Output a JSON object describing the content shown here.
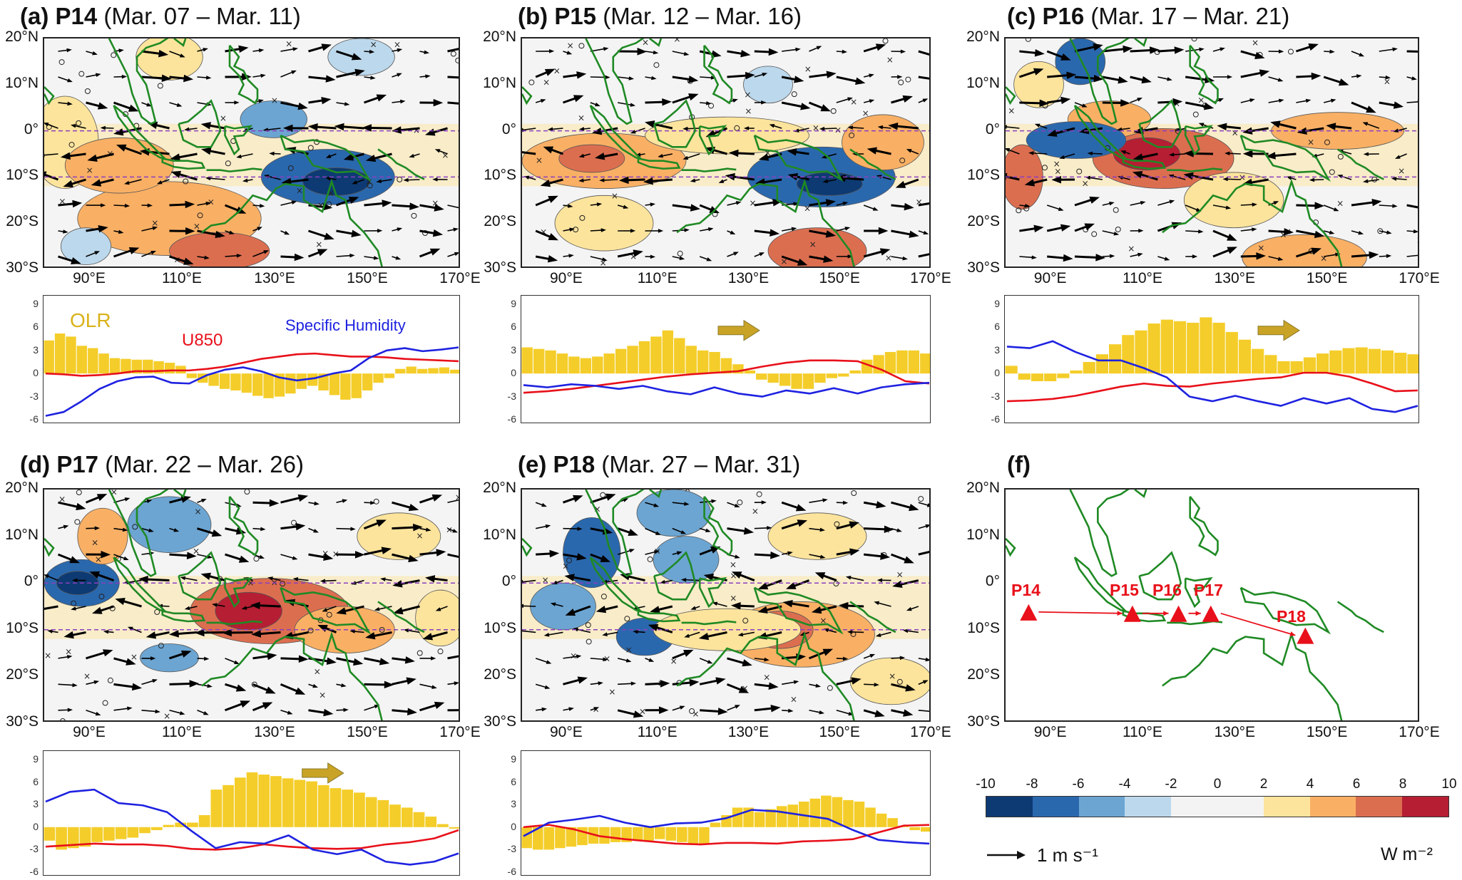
{
  "panels": [
    {
      "id": "a",
      "letter": "(a)",
      "name": "P14",
      "dates": "(Mar. 07 – Mar. 11)"
    },
    {
      "id": "b",
      "letter": "(b)",
      "name": "P15",
      "dates": "(Mar. 12 – Mar. 16)"
    },
    {
      "id": "c",
      "letter": "(c)",
      "name": "P16",
      "dates": "(Mar. 17 – Mar. 21)"
    },
    {
      "id": "d",
      "letter": "(d)",
      "name": "P17",
      "dates": "(Mar. 22 – Mar. 26)"
    },
    {
      "id": "e",
      "letter": "(e)",
      "name": "P18",
      "dates": "(Mar. 27 – Mar. 31)"
    },
    {
      "id": "f",
      "letter": "(f)",
      "name": "",
      "dates": ""
    }
  ],
  "lat_labels": [
    "20°N",
    "10°N",
    "0°",
    "10°S",
    "20°S",
    "30°S"
  ],
  "lon_labels": [
    "90°E",
    "110°E",
    "130°E",
    "150°E",
    "170°E"
  ],
  "ts_yticks": [
    "9",
    "6",
    "3",
    "0",
    "-3",
    "-6"
  ],
  "ts_legend": {
    "olr": "OLR",
    "u850": "U850",
    "q": "Specific Humidity"
  },
  "track_labels": [
    "P14",
    "P15",
    "P16",
    "P17",
    "P18"
  ],
  "colorbar": {
    "ticks": [
      "-10",
      "-8",
      "-6",
      "-4",
      "-2",
      "0",
      "2",
      "4",
      "6",
      "8",
      "10"
    ],
    "colors": [
      "#0d3a73",
      "#2a68ae",
      "#6ca5d2",
      "#bcd8ec",
      "#f3f3f3",
      "#f3f3f3",
      "#fde49d",
      "#f9b065",
      "#dc6e50",
      "#b61e33"
    ],
    "unit": "W m⁻²"
  },
  "wind_scale": "1 m s⁻¹",
  "colors": {
    "olr_bar": "#f4cd2a",
    "u850": "#e8101a",
    "q": "#1e22e0",
    "coast": "#1f8a24",
    "arrow_big": "#c9a326",
    "track": "#e8101a"
  },
  "chart_data": [
    {
      "type": "bar",
      "panel": "a",
      "y_range": [
        -6,
        9
      ],
      "olr": [
        4.3,
        5.2,
        4.8,
        3.6,
        3.3,
        2.6,
        2.0,
        1.9,
        1.8,
        1.8,
        1.6,
        1.4,
        1.0,
        -0.6,
        -1.2,
        -1.6,
        -2.0,
        -2.2,
        -2.5,
        -2.9,
        -3.2,
        -3.0,
        -2.6,
        -2.0,
        -1.6,
        -2.2,
        -2.8,
        -3.4,
        -3.2,
        -2.2,
        -1.2,
        -0.6,
        0.6,
        0.9,
        0.6,
        0.7,
        0.8,
        0.5
      ],
      "u850": [
        0.0,
        -0.1,
        -0.3,
        -0.2,
        0.0,
        0.3,
        0.3,
        0.4,
        0.4,
        0.6,
        0.9,
        1.4,
        1.9,
        2.2,
        2.5,
        2.6,
        2.4,
        2.2,
        2.2,
        2.1,
        1.9,
        1.8,
        1.7,
        1.6
      ],
      "q": [
        -5.5,
        -5.0,
        -3.6,
        -2.0,
        -1.0,
        -0.5,
        -0.4,
        -1.2,
        -1.3,
        -0.2,
        0.5,
        0.8,
        0.3,
        -0.5,
        -0.9,
        -0.6,
        0.0,
        0.4,
        2.0,
        3.0,
        3.3,
        2.9,
        3.1,
        3.4
      ]
    },
    {
      "type": "bar",
      "panel": "b",
      "y_range": [
        -6,
        9
      ],
      "olr": [
        3.4,
        3.2,
        3.0,
        2.6,
        2.2,
        2.0,
        2.2,
        2.6,
        3.2,
        3.6,
        4.2,
        4.8,
        5.6,
        4.6,
        3.6,
        3.0,
        2.8,
        2.0,
        1.2,
        0.4,
        -0.8,
        -1.2,
        -1.6,
        -2.0,
        -2.0,
        -1.2,
        -0.6,
        -0.4,
        0.4,
        1.8,
        2.4,
        2.8,
        3.0,
        3.0,
        2.6
      ],
      "u850": [
        -2.5,
        -2.3,
        -2.0,
        -1.6,
        -1.2,
        -0.8,
        -0.4,
        -0.1,
        0.1,
        0.3,
        0.9,
        1.4,
        1.7,
        1.7,
        1.6,
        0.5,
        -1.0,
        -1.3
      ],
      "q": [
        -1.5,
        -1.8,
        -1.4,
        -1.6,
        -2.0,
        -1.6,
        -2.3,
        -2.7,
        -1.8,
        -2.6,
        -3.0,
        -2.2,
        -2.6,
        -1.9,
        -2.6,
        -1.8,
        -1.4,
        -1.2
      ]
    },
    {
      "type": "bar",
      "panel": "c",
      "y_range": [
        -6,
        9
      ],
      "olr": [
        1.0,
        -0.8,
        -1.0,
        -1.0,
        -0.6,
        0.4,
        1.5,
        2.5,
        3.8,
        5.0,
        5.6,
        6.5,
        7.0,
        6.8,
        6.6,
        7.3,
        6.6,
        5.4,
        4.4,
        3.2,
        2.4,
        1.6,
        1.6,
        2.1,
        2.6,
        3.0,
        3.3,
        3.4,
        3.2,
        3.0,
        2.7,
        2.5
      ],
      "u850": [
        -3.6,
        -3.5,
        -3.3,
        -2.9,
        -2.3,
        -1.7,
        -1.3,
        -1.6,
        -1.7,
        -1.3,
        -1.0,
        -0.7,
        -0.5,
        0.1,
        0.1,
        -0.4,
        -1.3,
        -2.3,
        -2.2
      ],
      "q": [
        3.5,
        3.3,
        4.2,
        2.8,
        1.7,
        1.7,
        0.7,
        -0.5,
        -3.0,
        -3.6,
        -2.9,
        -3.6,
        -4.2,
        -3.2,
        -3.9,
        -3.2,
        -4.6,
        -5.0,
        -4.2
      ]
    },
    {
      "type": "bar",
      "panel": "d",
      "y_range": [
        -6,
        9
      ],
      "olr": [
        -1.8,
        -3.0,
        -2.8,
        -2.6,
        -2.0,
        -1.8,
        -1.6,
        -1.4,
        -0.8,
        -0.4,
        0.3,
        0.6,
        0.6,
        1.6,
        5.0,
        5.6,
        6.6,
        7.3,
        7.0,
        6.8,
        6.5,
        6.3,
        6.1,
        5.6,
        5.2,
        5.0,
        4.6,
        4.0,
        3.6,
        3.0,
        2.6,
        2.0,
        1.4,
        0.4,
        -0.2
      ],
      "u850": [
        -2.6,
        -2.4,
        -2.2,
        -2.3,
        -2.3,
        -2.5,
        -2.9,
        -3.0,
        -2.8,
        -2.3,
        -2.6,
        -2.8,
        -2.9,
        -2.8,
        -2.3,
        -2.0,
        -1.5,
        -0.4
      ],
      "q": [
        3.4,
        4.7,
        5.0,
        3.2,
        2.9,
        2.0,
        -0.5,
        -2.8,
        -2.0,
        -2.2,
        -1.1,
        -3.0,
        -3.6,
        -3.0,
        -4.6,
        -5.0,
        -4.6,
        -3.5
      ]
    },
    {
      "type": "bar",
      "panel": "e",
      "y_range": [
        -6,
        9
      ],
      "olr": [
        -2.8,
        -3.0,
        -3.0,
        -2.8,
        -2.6,
        -2.4,
        -2.2,
        -2.2,
        -2.0,
        -2.0,
        -1.8,
        -1.8,
        -1.6,
        -1.8,
        -2.0,
        -2.2,
        -2.2,
        0.6,
        1.6,
        2.6,
        2.6,
        2.0,
        2.4,
        2.8,
        3.0,
        3.4,
        3.8,
        4.2,
        4.0,
        3.6,
        3.4,
        2.6,
        1.8,
        1.2,
        0.2,
        -0.4,
        -0.6
      ],
      "u850": [
        0.0,
        0.3,
        -0.3,
        -1.2,
        -1.6,
        -1.9,
        -2.2,
        -2.3,
        -2.1,
        -2.1,
        -2.2,
        -1.9,
        -1.8,
        -1.6,
        -0.7,
        0.2,
        0.3
      ],
      "q": [
        -1.2,
        0.6,
        1.0,
        1.5,
        0.6,
        0.0,
        0.5,
        0.6,
        1.2,
        2.3,
        2.1,
        1.6,
        1.1,
        -0.4,
        -1.7,
        -2.0,
        -2.2
      ]
    }
  ]
}
